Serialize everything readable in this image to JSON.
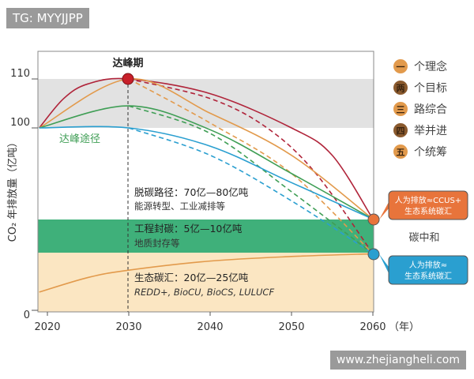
{
  "watermark_top": "TG: MYYJJPP",
  "watermark_bottom": "www.zhejiangheli.com",
  "chart_data": {
    "type": "line",
    "ylabel": "CO₂ 年排放量（亿吨）",
    "xlabel": "（年）",
    "x_ticks": [
      "2020",
      "2030",
      "2040",
      "2050",
      "2060"
    ],
    "y_ticks": [
      "110",
      "100",
      "0"
    ],
    "peak_label": "达峰期",
    "peak_path_label": "达峰途径",
    "neutral_label": "碳中和",
    "colors": {
      "red": "#b0243a",
      "orange": "#e29a4c",
      "green": "#3f9e55",
      "blue": "#2a9fd0",
      "band_gray": "#e2e2e2",
      "band_green": "#3fb07a",
      "band_beige": "#fbe6c2"
    },
    "series": [
      {
        "color": "red",
        "style": "solid",
        "points": [
          [
            2019,
            100
          ],
          [
            2022,
            106
          ],
          [
            2025,
            109
          ],
          [
            2030,
            110
          ],
          [
            2040,
            107
          ],
          [
            2050,
            100
          ],
          [
            2055,
            85
          ],
          [
            2060,
            50
          ]
        ]
      },
      {
        "color": "red",
        "style": "dashed",
        "points": [
          [
            2030,
            110
          ],
          [
            2040,
            106
          ],
          [
            2047,
            100
          ],
          [
            2053,
            75
          ],
          [
            2060,
            31
          ]
        ]
      },
      {
        "color": "orange",
        "style": "solid",
        "points": [
          [
            2019,
            100
          ],
          [
            2030,
            110
          ],
          [
            2040,
            103
          ],
          [
            2050,
            85
          ],
          [
            2060,
            50
          ]
        ]
      },
      {
        "color": "orange",
        "style": "dashed",
        "points": [
          [
            2030,
            110
          ],
          [
            2040,
            101
          ],
          [
            2050,
            75
          ],
          [
            2060,
            31
          ]
        ]
      },
      {
        "color": "green",
        "style": "solid",
        "points": [
          [
            2019,
            100
          ],
          [
            2030,
            104.5
          ],
          [
            2040,
            99
          ],
          [
            2050,
            75
          ],
          [
            2060,
            50
          ]
        ]
      },
      {
        "color": "green",
        "style": "dashed",
        "points": [
          [
            2030,
            104.5
          ],
          [
            2040,
            97
          ],
          [
            2050,
            65
          ],
          [
            2060,
            31
          ]
        ]
      },
      {
        "color": "blue",
        "style": "solid",
        "points": [
          [
            2019,
            100
          ],
          [
            2030,
            100
          ],
          [
            2040,
            90
          ],
          [
            2050,
            70
          ],
          [
            2060,
            50
          ]
        ]
      },
      {
        "color": "blue",
        "style": "dashed",
        "points": [
          [
            2030,
            100
          ],
          [
            2040,
            85
          ],
          [
            2050,
            60
          ],
          [
            2060,
            31
          ]
        ]
      },
      {
        "color": "orange",
        "style": "solid",
        "points": [
          [
            2019,
            10
          ],
          [
            2025,
            18
          ],
          [
            2030,
            22
          ],
          [
            2040,
            27
          ],
          [
            2050,
            29.5
          ],
          [
            2060,
            31
          ]
        ]
      }
    ],
    "bands": [
      {
        "name": "脱碳路径",
        "title": "脱碳路径：70亿—80亿吨",
        "subtitle": "能源转型、工业减排等"
      },
      {
        "name": "工程封碳",
        "title": "工程封碳：5亿—10亿吨",
        "subtitle": "地质封存等"
      },
      {
        "name": "生态碳汇",
        "title": "生态碳汇：20亿—25亿吨",
        "subtitle": "REDD+, BioCU, BioCS, LULUCF"
      }
    ],
    "callouts": [
      {
        "line1": "人为排放≈CCUS+",
        "line2": "生态系统碳汇",
        "color": "#e8743b"
      },
      {
        "line1": "人为排放≈",
        "line2": "生态系统碳汇",
        "color": "#2a9fd0"
      }
    ]
  },
  "legend": [
    {
      "badge": "一",
      "text": "个理念",
      "color": "#e29a4c"
    },
    {
      "badge": "两",
      "text": "个目标",
      "color": "#8a5a2e"
    },
    {
      "badge": "三",
      "text": "路综合",
      "color": "#e29a4c"
    },
    {
      "badge": "四",
      "text": "举并进",
      "color": "#8a5a2e"
    },
    {
      "badge": "五",
      "text": "个统筹",
      "color": "#e29a4c"
    }
  ]
}
